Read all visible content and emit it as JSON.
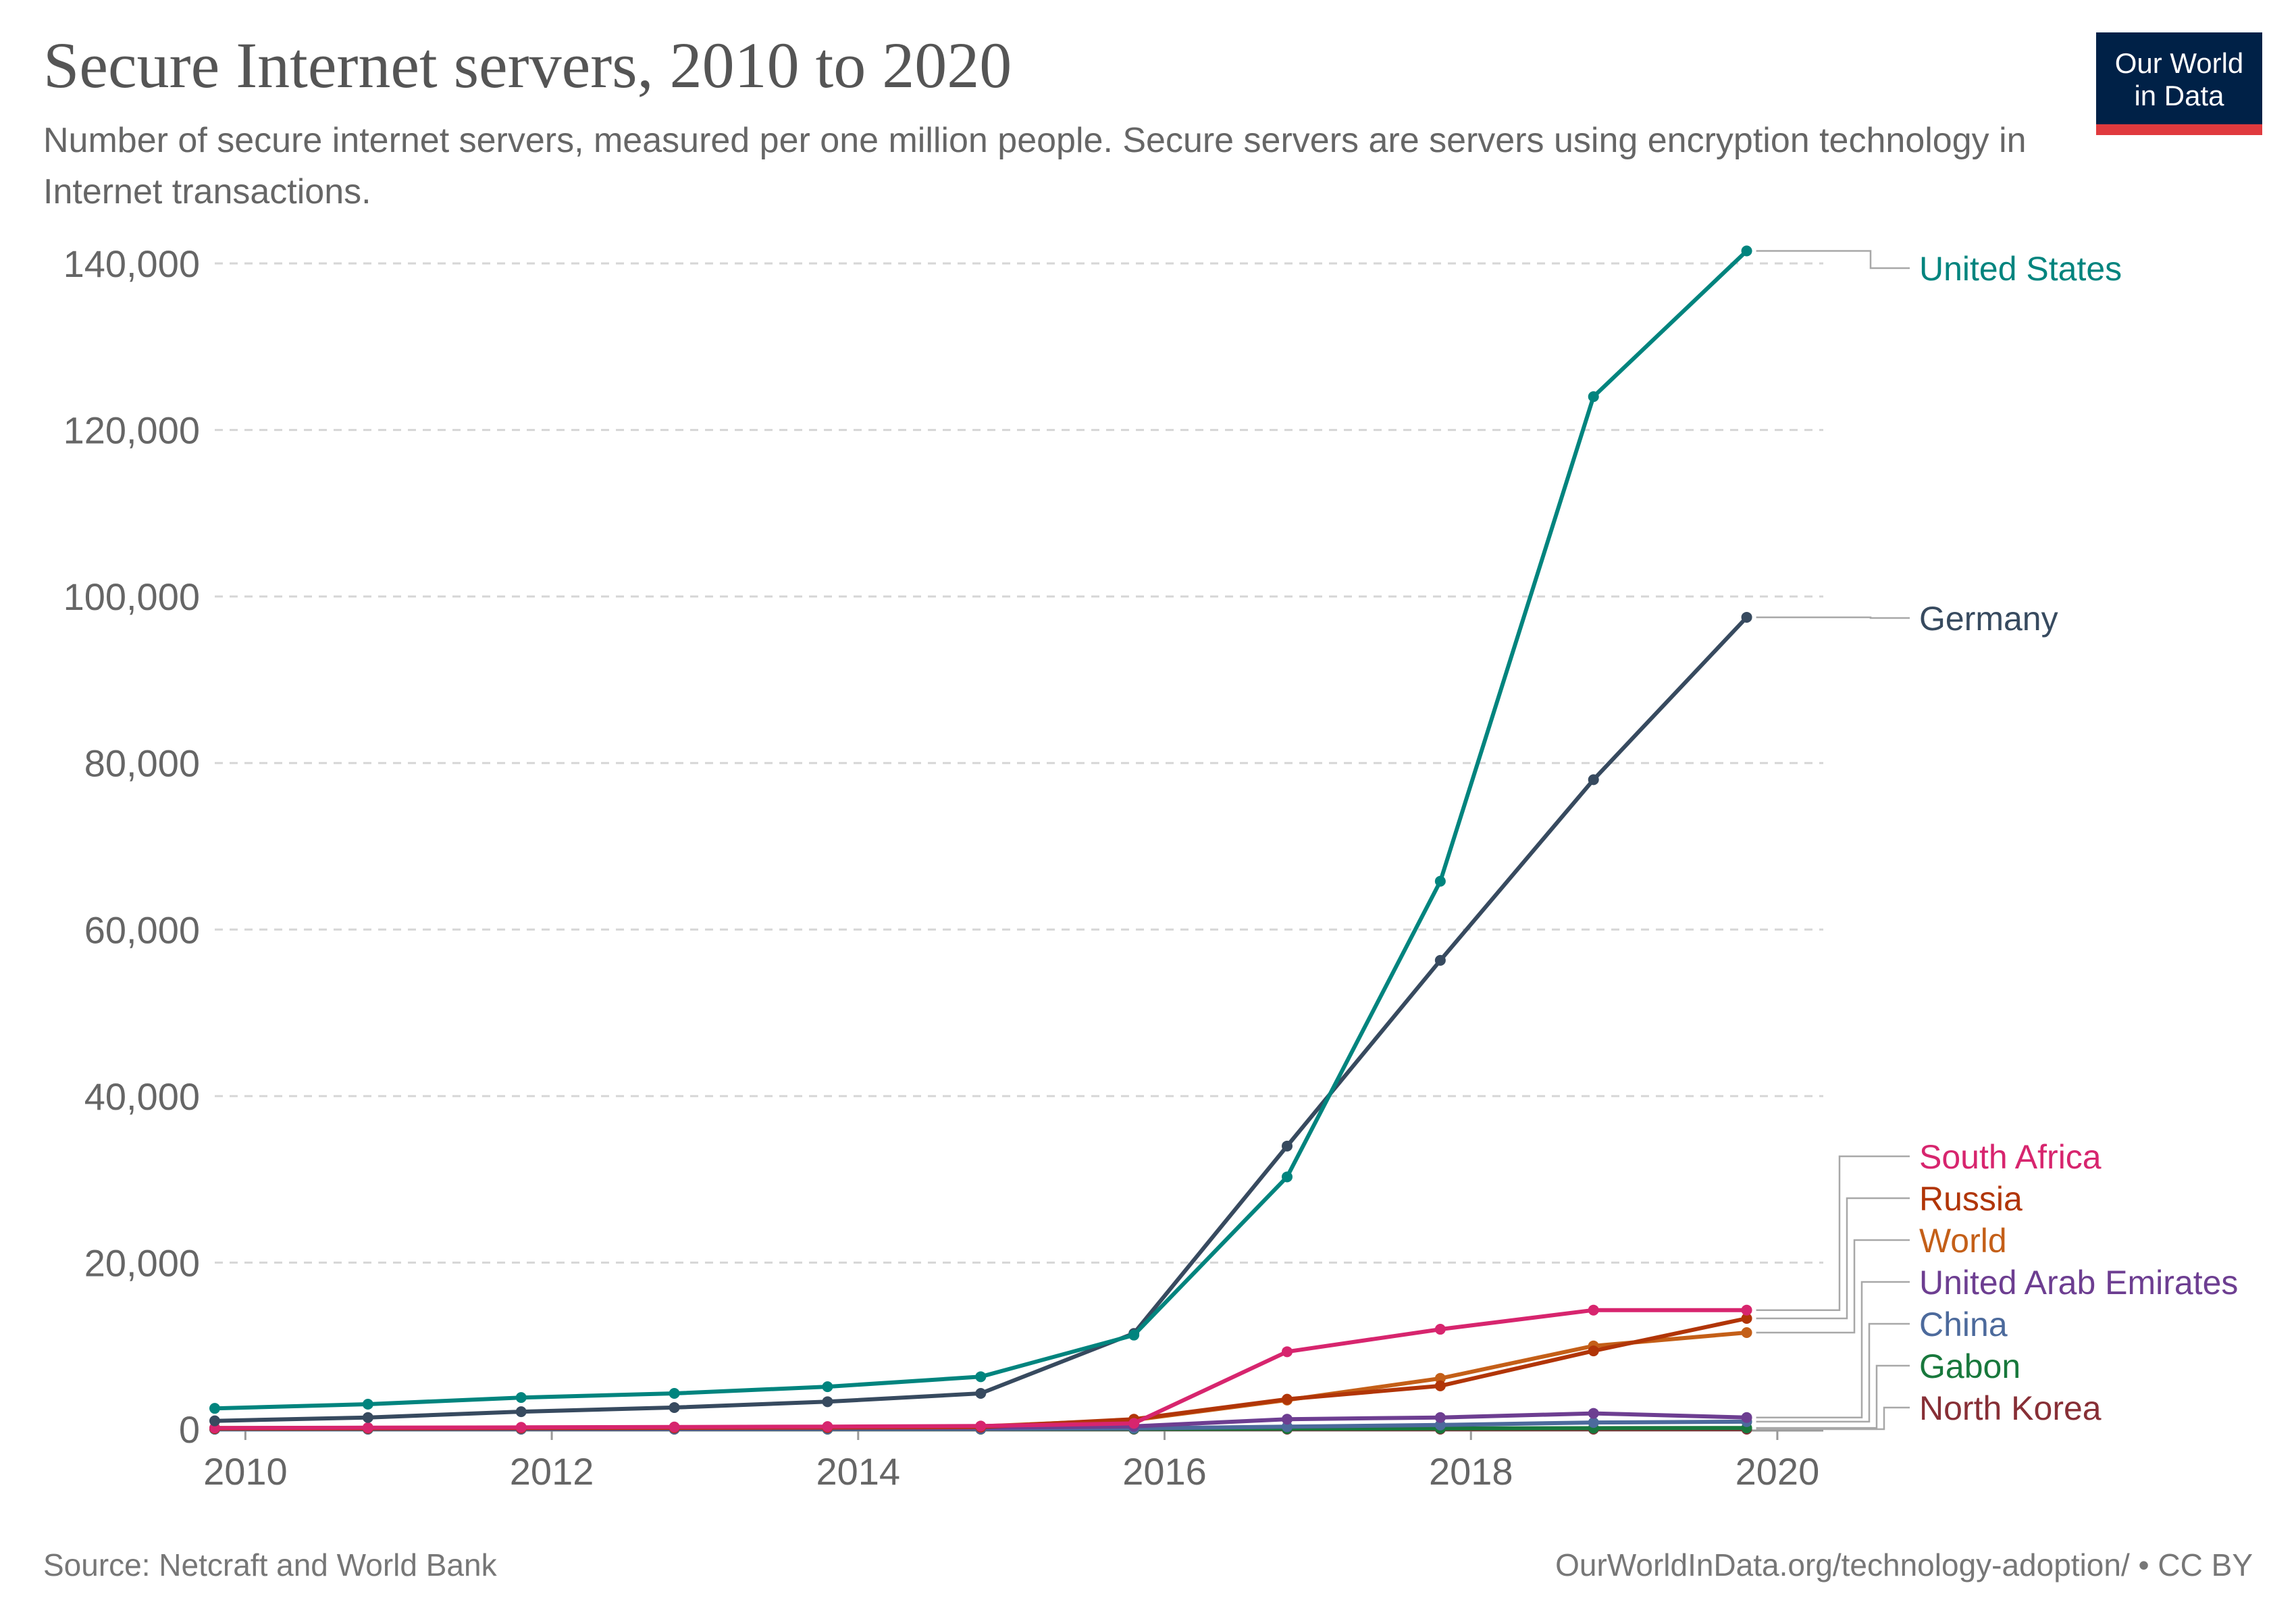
{
  "header": {
    "title": "Secure Internet servers, 2010 to 2020",
    "subtitle": "Number of secure internet servers, measured per one million people. Secure servers are servers using encryption technology in Internet transactions."
  },
  "logo": {
    "line1": "Our World",
    "line2": "in Data",
    "bg_color": "#002147",
    "accent_color": "#e03a3e"
  },
  "footer": {
    "source": "Source: Netcraft and World Bank",
    "url": "OurWorldInData.org/technology-adoption/ • CC BY"
  },
  "chart_data": {
    "type": "line",
    "title": "Secure Internet servers, 2010 to 2020",
    "xlabel": "",
    "ylabel": "",
    "xlim": [
      2009.8,
      2020.3
    ],
    "ylim": [
      0,
      140000
    ],
    "grid": true,
    "x_ticks": [
      2010,
      2012,
      2014,
      2016,
      2018,
      2020
    ],
    "x_tick_labels": [
      "2010",
      "2012",
      "2014",
      "2016",
      "2018",
      "2020"
    ],
    "y_ticks": [
      0,
      20000,
      40000,
      60000,
      80000,
      100000,
      120000,
      140000
    ],
    "y_tick_labels": [
      "0",
      "20,000",
      "40,000",
      "60,000",
      "80,000",
      "100,000",
      "120,000",
      "140,000"
    ],
    "x": [
      2009.8,
      2010.8,
      2011.8,
      2012.8,
      2013.8,
      2014.8,
      2015.8,
      2016.8,
      2017.8,
      2018.8,
      2019.8
    ],
    "legend_position": "right (labels at line ends)",
    "series": [
      {
        "name": "United States",
        "color": "#00847e",
        "values": [
          2500,
          3000,
          3800,
          4300,
          5100,
          6300,
          11300,
          30300,
          65800,
          124000,
          141500
        ]
      },
      {
        "name": "Germany",
        "color": "#374a5f",
        "values": [
          1000,
          1400,
          2100,
          2600,
          3300,
          4300,
          11500,
          34000,
          56300,
          78000,
          97500
        ]
      },
      {
        "name": "South Africa",
        "color": "#d7256e",
        "values": [
          150,
          180,
          220,
          260,
          310,
          380,
          700,
          9300,
          12000,
          14300,
          14300
        ]
      },
      {
        "name": "Russia",
        "color": "#b13507",
        "values": [
          80,
          100,
          130,
          160,
          200,
          260,
          1200,
          3600,
          5200,
          9400,
          13300
        ]
      },
      {
        "name": "World",
        "color": "#c45f18",
        "values": [
          140,
          160,
          190,
          220,
          270,
          350,
          1100,
          3500,
          6100,
          10000,
          11600
        ]
      },
      {
        "name": "United Arab Emirates",
        "color": "#6d3e91",
        "values": [
          70,
          80,
          100,
          120,
          150,
          180,
          350,
          1200,
          1400,
          1900,
          1400
        ]
      },
      {
        "name": "China",
        "color": "#4c6a9c",
        "values": [
          10,
          15,
          20,
          25,
          30,
          40,
          100,
          300,
          500,
          800,
          900
        ]
      },
      {
        "name": "Gabon",
        "color": "#18783c",
        "values": [
          5,
          6,
          8,
          10,
          12,
          15,
          30,
          60,
          90,
          120,
          150
        ]
      },
      {
        "name": "North Korea",
        "color": "#872f36",
        "values": [
          0,
          0,
          0,
          0,
          0,
          0,
          0,
          0,
          0,
          0,
          0
        ]
      }
    ]
  }
}
